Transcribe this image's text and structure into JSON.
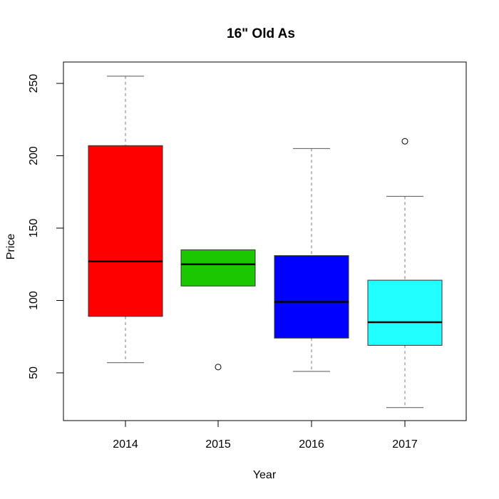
{
  "chart_data": {
    "type": "boxplot",
    "title": "16\" Old As",
    "xlabel": "Year",
    "ylabel": "Price",
    "categories": [
      "2014",
      "2015",
      "2016",
      "2017"
    ],
    "yticks": [
      50,
      100,
      150,
      200,
      250
    ],
    "ylim": [
      20,
      264
    ],
    "boxes": [
      {
        "name": "2014",
        "color": "#ff0000",
        "min": 57,
        "q1": 89,
        "median": 127,
        "q3": 207,
        "max": 255,
        "outliers": []
      },
      {
        "name": "2015",
        "color": "#1ac700",
        "min": 110,
        "q1": 110,
        "median": 125,
        "q3": 135,
        "max": 135,
        "outliers": [
          54
        ]
      },
      {
        "name": "2016",
        "color": "#0000ff",
        "min": 51,
        "q1": 74,
        "median": 99,
        "q3": 131,
        "max": 205,
        "outliers": []
      },
      {
        "name": "2017",
        "color": "#22ffff",
        "min": 26,
        "q1": 69,
        "median": 85,
        "q3": 114,
        "max": 172,
        "outliers": [
          210
        ]
      }
    ],
    "grid": false,
    "legend": null
  }
}
